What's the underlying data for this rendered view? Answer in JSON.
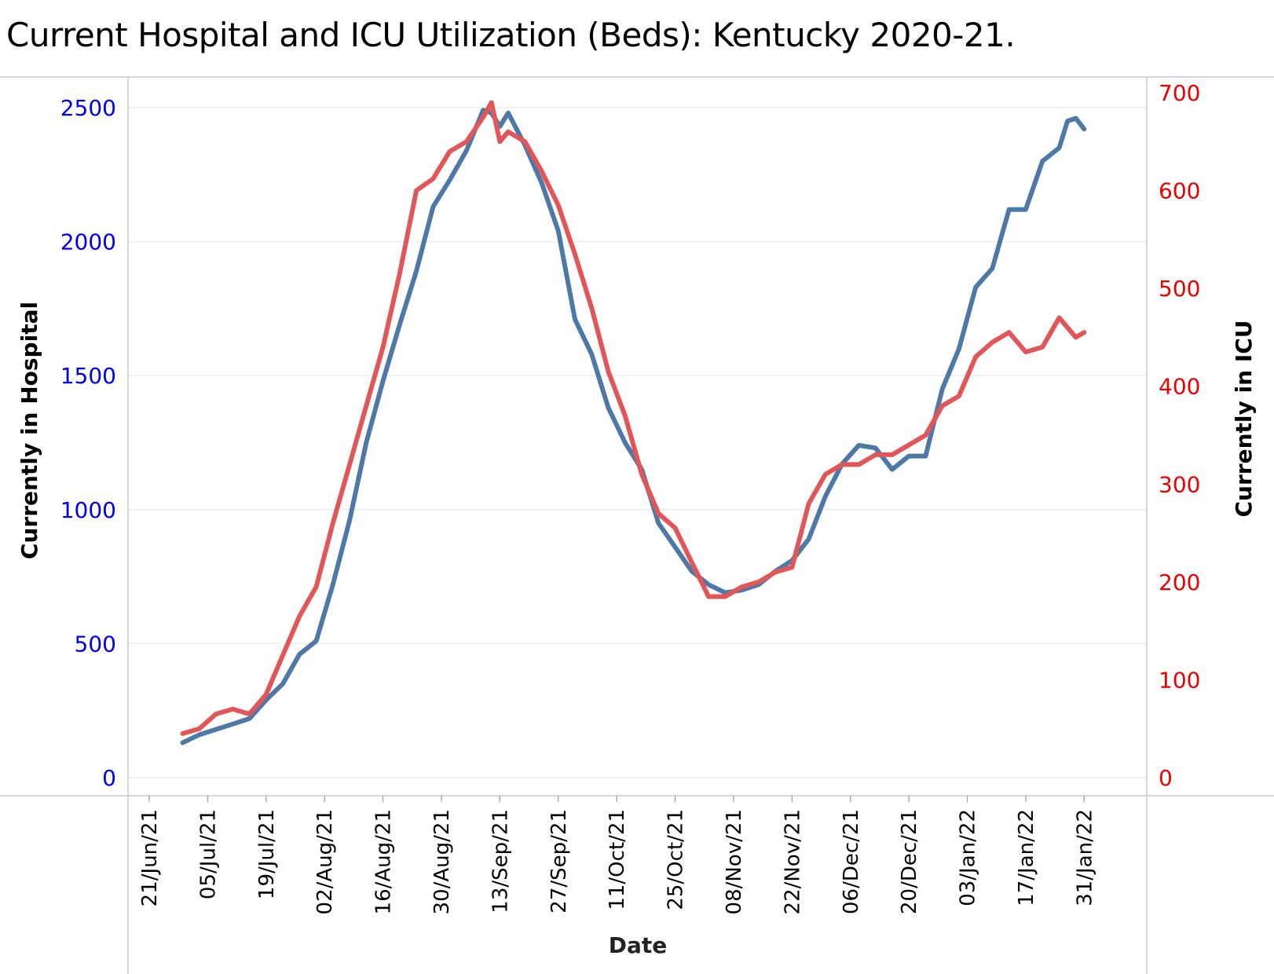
{
  "title": "Current Hospital and ICU Utilization (Beds):  Kentucky 2020-21.",
  "colors": {
    "hospital_line": "#4e79a7",
    "icu_line": "#e15759",
    "left_axis_text": "#0000ee",
    "right_axis_text": "#ee0000",
    "gridline": "#eeeeee",
    "axis_line": "#cccccc"
  },
  "chart_data": {
    "type": "line",
    "title": "Current Hospital and ICU Utilization (Beds):  Kentucky 2020-21.",
    "xlabel": "Date",
    "ylabel_left": "Currently in Hospital",
    "ylabel_right": "Currently in ICU",
    "x_ticks": [
      "21/Jun/21",
      "05/Jul/21",
      "19/Jul/21",
      "02/Aug/21",
      "16/Aug/21",
      "30/Aug/21",
      "13/Sep/21",
      "27/Sep/21",
      "11/Oct/21",
      "25/Oct/21",
      "08/Nov/21",
      "22/Nov/21",
      "06/Dec/21",
      "20/Dec/21",
      "03/Jan/22",
      "17/Jan/22",
      "31/Jan/22"
    ],
    "y_left_ticks": [
      "0",
      "500",
      "1000",
      "1500",
      "2000",
      "2500"
    ],
    "y_right_ticks": [
      "0",
      "100",
      "200",
      "300",
      "400",
      "500",
      "600",
      "700"
    ],
    "y_left_range": [
      0,
      2600
    ],
    "y_right_range": [
      0,
      700
    ],
    "grid": true,
    "x": [
      "2021-06-29",
      "2021-07-03",
      "2021-07-07",
      "2021-07-11",
      "2021-07-15",
      "2021-07-19",
      "2021-07-23",
      "2021-07-27",
      "2021-07-31",
      "2021-08-04",
      "2021-08-08",
      "2021-08-12",
      "2021-08-16",
      "2021-08-20",
      "2021-08-24",
      "2021-08-28",
      "2021-09-01",
      "2021-09-05",
      "2021-09-09",
      "2021-09-11",
      "2021-09-13",
      "2021-09-15",
      "2021-09-19",
      "2021-09-23",
      "2021-09-27",
      "2021-10-01",
      "2021-10-05",
      "2021-10-09",
      "2021-10-13",
      "2021-10-17",
      "2021-10-21",
      "2021-10-25",
      "2021-10-29",
      "2021-11-02",
      "2021-11-06",
      "2021-11-10",
      "2021-11-14",
      "2021-11-18",
      "2021-11-22",
      "2021-11-26",
      "2021-11-30",
      "2021-12-04",
      "2021-12-08",
      "2021-12-12",
      "2021-12-16",
      "2021-12-20",
      "2021-12-24",
      "2021-12-28",
      "2022-01-01",
      "2022-01-05",
      "2022-01-09",
      "2022-01-13",
      "2022-01-17",
      "2022-01-21",
      "2022-01-25",
      "2022-01-27",
      "2022-01-29",
      "2022-01-31"
    ],
    "series": [
      {
        "name": "Currently in Hospital",
        "axis": "left",
        "values": [
          130,
          160,
          180,
          200,
          220,
          290,
          350,
          460,
          510,
          720,
          960,
          1250,
          1480,
          1690,
          1890,
          2130,
          2230,
          2340,
          2490,
          2480,
          2430,
          2480,
          2360,
          2220,
          2040,
          1710,
          1580,
          1380,
          1250,
          1150,
          950,
          860,
          770,
          720,
          690,
          700,
          720,
          770,
          810,
          890,
          1050,
          1170,
          1240,
          1230,
          1150,
          1200,
          1200,
          1450,
          1600,
          1830,
          1900,
          2120,
          2120,
          2300,
          2350,
          2450,
          2460,
          2420
        ]
      },
      {
        "name": "Currently in ICU",
        "axis": "right",
        "values": [
          45,
          50,
          65,
          70,
          65,
          85,
          125,
          165,
          195,
          260,
          320,
          380,
          440,
          515,
          600,
          612,
          640,
          650,
          675,
          690,
          650,
          660,
          650,
          620,
          585,
          535,
          480,
          415,
          370,
          310,
          270,
          255,
          220,
          185,
          185,
          195,
          200,
          210,
          215,
          280,
          310,
          320,
          320,
          330,
          330,
          340,
          350,
          380,
          390,
          430,
          445,
          455,
          435,
          440,
          470,
          460,
          450,
          455
        ]
      }
    ]
  }
}
